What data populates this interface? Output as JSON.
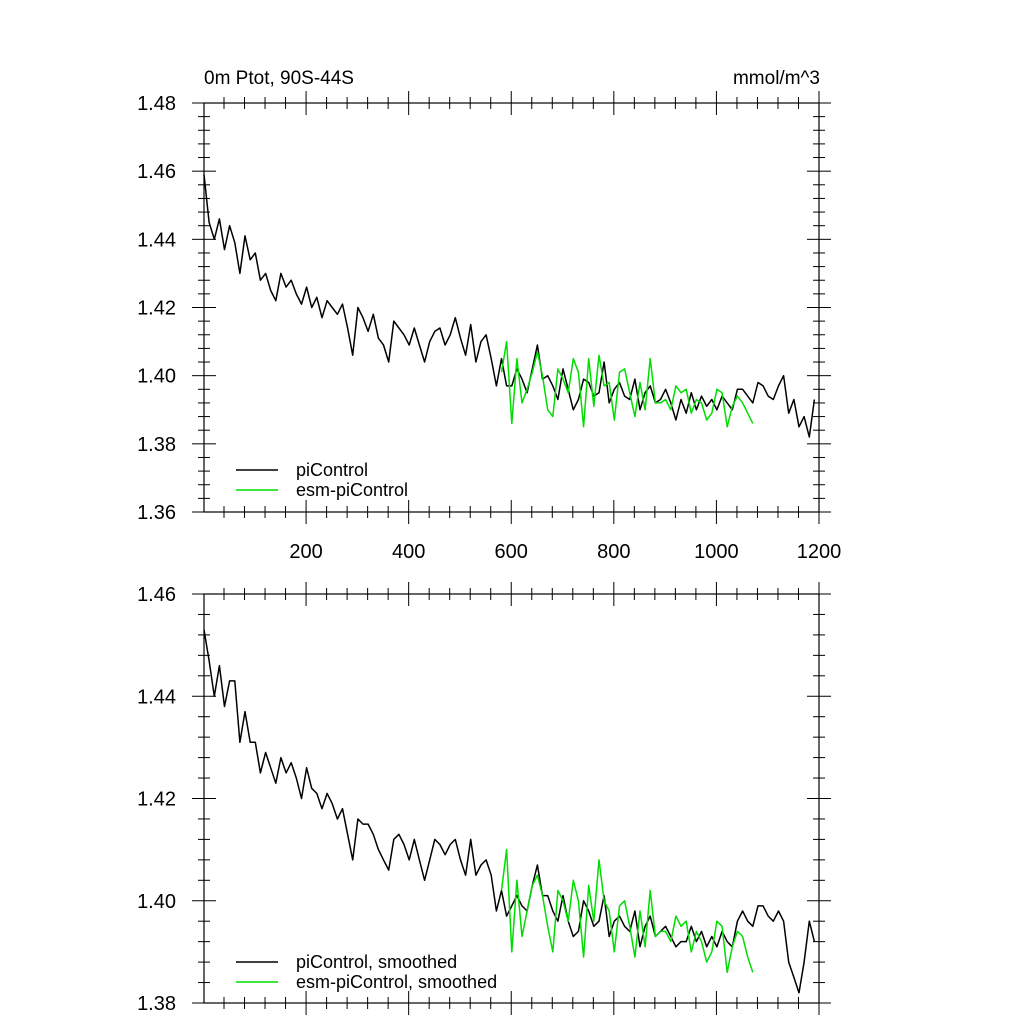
{
  "chart_data": [
    {
      "type": "line",
      "title_left": "0m Ptot, 90S-44S",
      "title_right": "mmol/m^3",
      "xlabel": "",
      "ylabel": "",
      "xlim": [
        1,
        1200
      ],
      "ylim": [
        1.36,
        1.48
      ],
      "xticks": [
        200,
        400,
        600,
        800,
        1000,
        1200
      ],
      "yticks": [
        1.36,
        1.38,
        1.4,
        1.42,
        1.44,
        1.46,
        1.48
      ],
      "ytick_labels": [
        "1.36",
        "1.38",
        "1.40",
        "1.42",
        "1.44",
        "1.46",
        "1.48"
      ],
      "xtick_labels": [
        "200",
        "400",
        "600",
        "800",
        "1000",
        "1200"
      ],
      "legend_position": "bottom-left",
      "series": [
        {
          "name": "piControl",
          "color": "#000000",
          "x_start": 1,
          "x_step": 10,
          "values": [
            1.459,
            1.445,
            1.44,
            1.446,
            1.437,
            1.444,
            1.439,
            1.43,
            1.441,
            1.434,
            1.436,
            1.428,
            1.43,
            1.425,
            1.422,
            1.43,
            1.426,
            1.428,
            1.424,
            1.421,
            1.426,
            1.42,
            1.423,
            1.417,
            1.422,
            1.42,
            1.418,
            1.421,
            1.414,
            1.406,
            1.42,
            1.417,
            1.413,
            1.418,
            1.411,
            1.409,
            1.404,
            1.416,
            1.414,
            1.412,
            1.409,
            1.414,
            1.409,
            1.404,
            1.41,
            1.413,
            1.414,
            1.409,
            1.412,
            1.417,
            1.411,
            1.406,
            1.415,
            1.404,
            1.41,
            1.412,
            1.405,
            1.397,
            1.405,
            1.397,
            1.397,
            1.402,
            1.399,
            1.395,
            1.402,
            1.409,
            1.399,
            1.4,
            1.397,
            1.393,
            1.402,
            1.396,
            1.39,
            1.393,
            1.399,
            1.398,
            1.394,
            1.395,
            1.404,
            1.392,
            1.396,
            1.398,
            1.394,
            1.393,
            1.399,
            1.39,
            1.395,
            1.397,
            1.392,
            1.393,
            1.396,
            1.392,
            1.387,
            1.393,
            1.389,
            1.395,
            1.39,
            1.394,
            1.391,
            1.393,
            1.39,
            1.394,
            1.392,
            1.39,
            1.396,
            1.396,
            1.394,
            1.392,
            1.398,
            1.397,
            1.394,
            1.393,
            1.397,
            1.4,
            1.389,
            1.393,
            1.385,
            1.388,
            1.382,
            1.393
          ]
        },
        {
          "name": "esm-piControl",
          "color": "#00dd00",
          "x_start": 581,
          "x_step": 10,
          "values": [
            1.401,
            1.41,
            1.386,
            1.405,
            1.392,
            1.396,
            1.401,
            1.407,
            1.4,
            1.39,
            1.388,
            1.402,
            1.399,
            1.395,
            1.405,
            1.401,
            1.385,
            1.405,
            1.391,
            1.406,
            1.397,
            1.398,
            1.387,
            1.401,
            1.402,
            1.395,
            1.388,
            1.398,
            1.39,
            1.405,
            1.392,
            1.392,
            1.393,
            1.39,
            1.397,
            1.395,
            1.396,
            1.389,
            1.393,
            1.392,
            1.387,
            1.389,
            1.396,
            1.395,
            1.385,
            1.391,
            1.394,
            1.392,
            1.389,
            1.386
          ]
        }
      ]
    },
    {
      "type": "line",
      "xlim": [
        1,
        1200
      ],
      "ylim": [
        1.38,
        1.46
      ],
      "yticks": [
        1.38,
        1.4,
        1.42,
        1.44,
        1.46
      ],
      "ytick_labels": [
        "1.38",
        "1.40",
        "1.42",
        "1.44",
        "1.46"
      ],
      "legend_position": "bottom-left",
      "series": [
        {
          "name": "piControl, smoothed",
          "color": "#000000",
          "x_start": 1,
          "x_step": 10,
          "values": [
            1.453,
            1.447,
            1.44,
            1.446,
            1.438,
            1.443,
            1.443,
            1.431,
            1.437,
            1.431,
            1.431,
            1.425,
            1.429,
            1.426,
            1.423,
            1.428,
            1.425,
            1.427,
            1.424,
            1.42,
            1.426,
            1.422,
            1.421,
            1.418,
            1.421,
            1.419,
            1.416,
            1.418,
            1.413,
            1.408,
            1.416,
            1.415,
            1.415,
            1.413,
            1.41,
            1.408,
            1.406,
            1.412,
            1.413,
            1.411,
            1.408,
            1.412,
            1.408,
            1.404,
            1.408,
            1.412,
            1.411,
            1.409,
            1.411,
            1.412,
            1.408,
            1.405,
            1.412,
            1.405,
            1.407,
            1.408,
            1.405,
            1.398,
            1.402,
            1.397,
            1.399,
            1.401,
            1.399,
            1.398,
            1.403,
            1.407,
            1.401,
            1.401,
            1.398,
            1.396,
            1.401,
            1.396,
            1.393,
            1.394,
            1.4,
            1.398,
            1.395,
            1.396,
            1.401,
            1.393,
            1.396,
            1.397,
            1.395,
            1.394,
            1.398,
            1.391,
            1.395,
            1.397,
            1.393,
            1.394,
            1.395,
            1.393,
            1.391,
            1.392,
            1.392,
            1.395,
            1.392,
            1.394,
            1.391,
            1.393,
            1.391,
            1.394,
            1.392,
            1.391,
            1.396,
            1.398,
            1.396,
            1.395,
            1.399,
            1.399,
            1.397,
            1.396,
            1.398,
            1.396,
            1.388,
            1.385,
            1.382,
            1.388,
            1.396,
            1.392
          ]
        },
        {
          "name": "esm-piControl, smoothed",
          "color": "#00dd00",
          "x_start": 581,
          "x_step": 10,
          "values": [
            1.402,
            1.41,
            1.39,
            1.404,
            1.393,
            1.398,
            1.403,
            1.405,
            1.401,
            1.395,
            1.39,
            1.402,
            1.4,
            1.396,
            1.404,
            1.4,
            1.389,
            1.403,
            1.396,
            1.408,
            1.4,
            1.398,
            1.39,
            1.399,
            1.4,
            1.395,
            1.389,
            1.398,
            1.391,
            1.402,
            1.393,
            1.394,
            1.394,
            1.392,
            1.397,
            1.395,
            1.396,
            1.39,
            1.394,
            1.392,
            1.388,
            1.39,
            1.396,
            1.395,
            1.386,
            1.391,
            1.394,
            1.393,
            1.389,
            1.386
          ]
        }
      ]
    }
  ]
}
